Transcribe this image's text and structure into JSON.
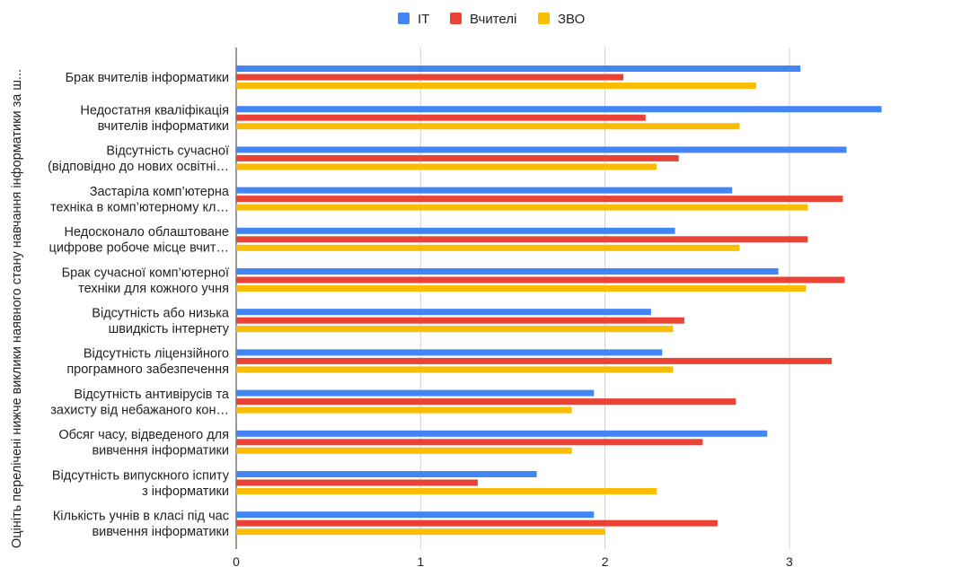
{
  "chart_data": {
    "type": "bar",
    "orientation": "horizontal",
    "title": "",
    "xlabel": "",
    "ylabel": "Оцініть перелічені нижче виклики наявного стану навчання інформатики за ш...",
    "xlim": [
      0,
      3.75
    ],
    "xticks": [
      0,
      1,
      2,
      3
    ],
    "grid": true,
    "legend_position": "top",
    "categories": [
      [
        "Брак вчителів інформатики"
      ],
      [
        "Недостатня кваліфікація",
        "вчителів інформатики"
      ],
      [
        "Відсутність сучасної",
        "(відповідно до нових освітні…"
      ],
      [
        "Застаріла комп’ютерна",
        "техніка в комп’ютерному кл…"
      ],
      [
        "Недосконало облаштоване",
        "цифрове робоче місце вчит…"
      ],
      [
        "Брак сучасної комп’ютерної",
        "техніки для кожного учня"
      ],
      [
        "Відсутність або низька",
        "швидкість інтернету"
      ],
      [
        "Відсутність ліцензійного",
        "програмного забезпечення"
      ],
      [
        "Відсутність антивірусів та",
        "захисту від небажаного кон…"
      ],
      [
        "Обсяг часу, відведеного для",
        "вивчення інформатики"
      ],
      [
        "Відсутність випускного іспиту",
        "з інформатики"
      ],
      [
        "Кількість учнів в класі під час",
        "вивчення інформатики"
      ]
    ],
    "series": [
      {
        "name": "IT",
        "color": "#4285F4",
        "values": [
          3.06,
          3.5,
          3.31,
          2.69,
          2.38,
          2.94,
          2.25,
          2.31,
          1.94,
          2.88,
          1.63,
          1.94
        ]
      },
      {
        "name": "Вчителі",
        "color": "#EA4335",
        "values": [
          2.1,
          2.22,
          2.4,
          3.29,
          3.1,
          3.3,
          2.43,
          3.23,
          2.71,
          2.53,
          1.31,
          2.61
        ]
      },
      {
        "name": "ЗВО",
        "color": "#FBBC04",
        "values": [
          2.82,
          2.73,
          2.28,
          3.1,
          2.73,
          3.09,
          2.37,
          2.37,
          1.82,
          1.82,
          2.28,
          2.0
        ]
      }
    ]
  }
}
